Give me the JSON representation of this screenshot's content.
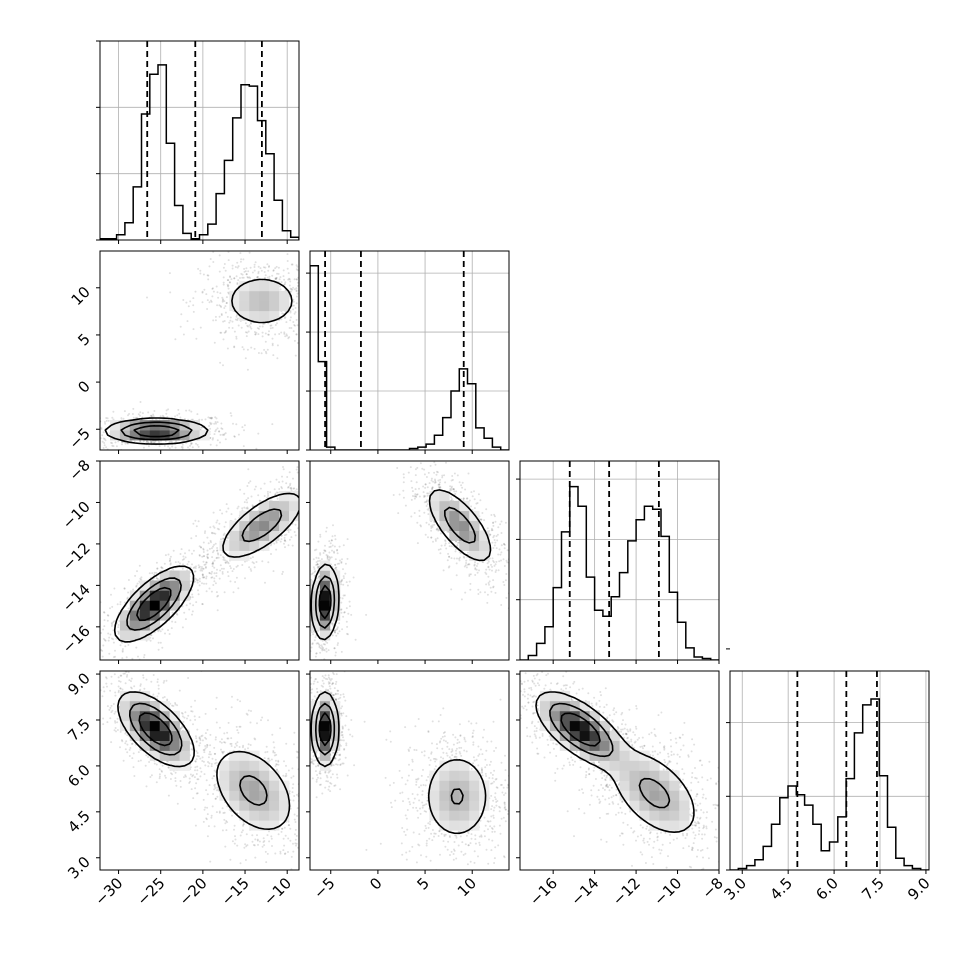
{
  "chart_data": {
    "type": "corner",
    "description_free": true,
    "parameters": 4,
    "hist_color": "#000000",
    "contour_color": "#000000",
    "grid": true,
    "params": [
      {
        "ticks": [
          -30,
          -25,
          -20,
          -15,
          -10
        ],
        "tick_labels": [
          "−30",
          "−25",
          "−20",
          "−15",
          "−10"
        ],
        "range": [
          -32.2,
          -8.6
        ],
        "quantiles": [
          -26.6,
          -20.9,
          -13.0
        ]
      },
      {
        "ticks": [
          -5,
          0,
          5,
          10
        ],
        "tick_labels": [
          "−5",
          "0",
          "5",
          "10"
        ],
        "range": [
          -7.2,
          13.9
        ],
        "quantiles": [
          -5.6,
          -1.8,
          9.1
        ]
      },
      {
        "ticks": [
          -16,
          -14,
          -12,
          -10,
          -8
        ],
        "tick_labels": [
          "−16",
          "−14",
          "−12",
          "−10",
          "−8"
        ],
        "range": [
          -17.6,
          -8.0
        ],
        "quantiles": [
          -15.2,
          -13.3,
          -10.9
        ]
      },
      {
        "ticks": [
          3.0,
          4.5,
          6.0,
          7.5,
          9.0
        ],
        "tick_labels": [
          "3.0",
          "4.5",
          "6.0",
          "7.5",
          "9.0"
        ],
        "range": [
          2.6,
          9.1
        ],
        "quantiles": [
          4.8,
          6.4,
          7.4
        ]
      }
    ],
    "histograms": [
      {
        "counts": [
          1,
          1,
          4,
          13,
          40,
          95,
          125,
          132,
          73,
          26,
          5,
          1,
          4,
          12,
          35,
          60,
          92,
          117,
          116,
          90,
          65,
          30,
          7,
          2
        ]
      },
      {
        "counts": [
          125,
          60,
          2,
          0,
          0,
          0,
          0,
          0,
          0,
          0,
          0,
          0,
          1,
          2,
          4,
          10,
          22,
          40,
          55,
          45,
          15,
          8,
          2,
          0
        ]
      },
      {
        "counts": [
          0,
          3,
          11,
          22,
          48,
          85,
          115,
          102,
          55,
          33,
          29,
          42,
          58,
          79,
          93,
          102,
          100,
          82,
          45,
          25,
          8,
          2,
          1,
          0
        ]
      },
      {
        "counts": [
          0,
          1,
          3,
          7,
          16,
          31,
          49,
          57,
          51,
          44,
          31,
          13,
          19,
          36,
          62,
          93,
          112,
          116,
          64,
          29,
          8,
          3,
          1,
          0
        ]
      }
    ],
    "hist_ymax": [
      150,
      135,
      132,
      135
    ],
    "hist_gridlines": [
      [
        0,
        50,
        100,
        150
      ],
      [
        0,
        40,
        80,
        120
      ],
      [
        0,
        40,
        80,
        120
      ],
      [
        0,
        50,
        100,
        150
      ]
    ],
    "pairs": [
      {
        "row": 1,
        "col": 0,
        "modes": [
          {
            "cx": -25.5,
            "cy": -5.2,
            "sx": 3.0,
            "sy": 0.65,
            "rho": 0.0,
            "w": 1.0,
            "peak": 1.0
          },
          {
            "cx": -13.0,
            "cy": 8.6,
            "sx": 2.5,
            "sy": 1.6,
            "rho": 0.0,
            "w": 1.0,
            "peak": 0.35
          }
        ]
      },
      {
        "row": 2,
        "col": 0,
        "modes": [
          {
            "cx": -25.8,
            "cy": -14.9,
            "sx": 2.3,
            "sy": 0.9,
            "rho": 0.7,
            "w": 1.0,
            "peak": 1.0
          },
          {
            "cx": -13.0,
            "cy": -11.1,
            "sx": 2.7,
            "sy": 0.9,
            "rho": 0.7,
            "w": 1.0,
            "peak": 0.55
          }
        ]
      },
      {
        "row": 2,
        "col": 1,
        "modes": [
          {
            "cx": -5.6,
            "cy": -14.8,
            "sx": 0.7,
            "sy": 0.9,
            "rho": 0.1,
            "w": 1.0,
            "peak": 1.0
          },
          {
            "cx": 8.7,
            "cy": -11.1,
            "sx": 1.9,
            "sy": 1.0,
            "rho": -0.7,
            "w": 1.0,
            "peak": 0.55
          }
        ]
      },
      {
        "row": 3,
        "col": 0,
        "modes": [
          {
            "cx": -25.6,
            "cy": 7.2,
            "sx": 2.2,
            "sy": 0.6,
            "rho": -0.6,
            "w": 1.0,
            "peak": 1.0
          },
          {
            "cx": -14.0,
            "cy": 5.2,
            "sx": 2.7,
            "sy": 0.8,
            "rho": -0.4,
            "w": 1.0,
            "peak": 0.45
          }
        ]
      },
      {
        "row": 3,
        "col": 1,
        "modes": [
          {
            "cx": -5.6,
            "cy": 7.2,
            "sx": 0.7,
            "sy": 0.6,
            "rho": 0.0,
            "w": 1.0,
            "peak": 1.0
          },
          {
            "cx": 8.4,
            "cy": 5.0,
            "sx": 2.0,
            "sy": 0.8,
            "rho": 0.0,
            "w": 1.0,
            "peak": 0.4
          }
        ]
      },
      {
        "row": 3,
        "col": 2,
        "modes": [
          {
            "cx": -14.7,
            "cy": 7.2,
            "sx": 1.05,
            "sy": 0.6,
            "rho": -0.65,
            "w": 1.0,
            "peak": 1.0
          },
          {
            "cx": -11.1,
            "cy": 5.1,
            "sx": 1.2,
            "sy": 0.8,
            "rho": -0.5,
            "w": 1.0,
            "peak": 0.45
          }
        ]
      }
    ]
  }
}
